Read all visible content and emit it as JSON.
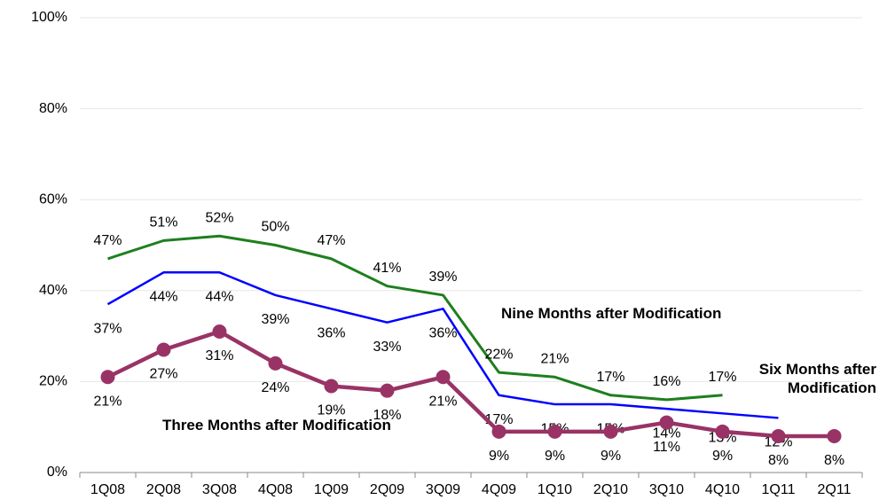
{
  "chart_data": {
    "type": "line",
    "categories": [
      "1Q08",
      "2Q08",
      "3Q08",
      "4Q08",
      "1Q09",
      "2Q09",
      "3Q09",
      "4Q09",
      "1Q10",
      "2Q10",
      "3Q10",
      "4Q10",
      "1Q11",
      "2Q11"
    ],
    "ylim": [
      0,
      100
    ],
    "yticks": [
      {
        "value": 0,
        "label": "0%"
      },
      {
        "value": 20,
        "label": "20%"
      },
      {
        "value": 40,
        "label": "40%"
      },
      {
        "value": 60,
        "label": "60%"
      },
      {
        "value": 80,
        "label": "80%"
      },
      {
        "value": 100,
        "label": "100%"
      }
    ],
    "grid": true,
    "series": [
      {
        "name": "Nine Months after Modification",
        "color": "#1e7f1e",
        "values": [
          47,
          51,
          52,
          50,
          47,
          41,
          39,
          22,
          21,
          17,
          16,
          17,
          null,
          null
        ],
        "value_labels": [
          "47%",
          "51%",
          "52%",
          "50%",
          "47%",
          "41%",
          "39%",
          "22%",
          "21%",
          "17%",
          "16%",
          "17%",
          null,
          null
        ]
      },
      {
        "name": "Six Months after Modification",
        "color": "#0000ff",
        "values": [
          37,
          44,
          44,
          39,
          36,
          33,
          36,
          17,
          15,
          15,
          14,
          13,
          12,
          null
        ],
        "value_labels": [
          "37%",
          "44%",
          "44%",
          "39%",
          "36%",
          "33%",
          "36%",
          "17%",
          "15%",
          "15%",
          "14%",
          "13%",
          "12%",
          null
        ]
      },
      {
        "name": "Three Months after Modification",
        "color": "#993366",
        "values": [
          21,
          27,
          31,
          24,
          19,
          18,
          21,
          9,
          9,
          9,
          11,
          9,
          8,
          8
        ],
        "value_labels": [
          "21%",
          "27%",
          "31%",
          "24%",
          "19%",
          "18%",
          "21%",
          "9%",
          "9%",
          "9%",
          "11%",
          "9%",
          "8%",
          "8%"
        ]
      }
    ]
  }
}
